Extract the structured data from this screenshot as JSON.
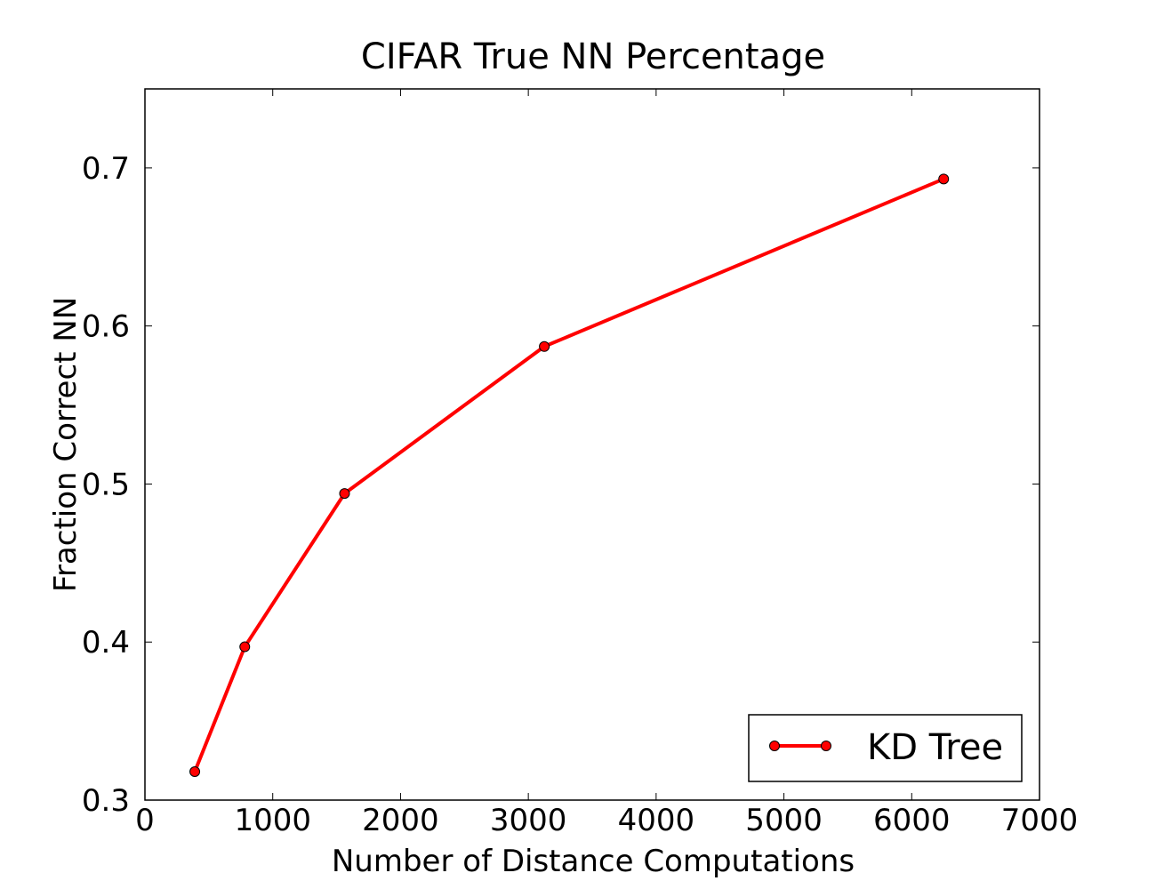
{
  "chart_data": {
    "type": "line",
    "title": "CIFAR True NN Percentage",
    "xlabel": "Number of Distance Computations",
    "ylabel": "Fraction Correct NN",
    "xlim": [
      0,
      7000
    ],
    "ylim": [
      0.3,
      0.75
    ],
    "xticks": [
      0,
      1000,
      2000,
      3000,
      4000,
      5000,
      6000,
      7000
    ],
    "xtick_labels": [
      "0",
      "1000",
      "2000",
      "3000",
      "4000",
      "5000",
      "6000",
      "7000"
    ],
    "yticks": [
      0.3,
      0.4,
      0.5,
      0.6,
      0.7
    ],
    "ytick_labels": [
      "0.3",
      "0.4",
      "0.5",
      "0.6",
      "0.7"
    ],
    "grid": false,
    "legend_position": "bottom-right",
    "series": [
      {
        "name": "KD Tree",
        "color": "#ff0000",
        "marker": "circle",
        "x": [
          390,
          781,
          1562,
          3125,
          6250
        ],
        "y": [
          0.318,
          0.397,
          0.494,
          0.587,
          0.693
        ]
      }
    ]
  }
}
